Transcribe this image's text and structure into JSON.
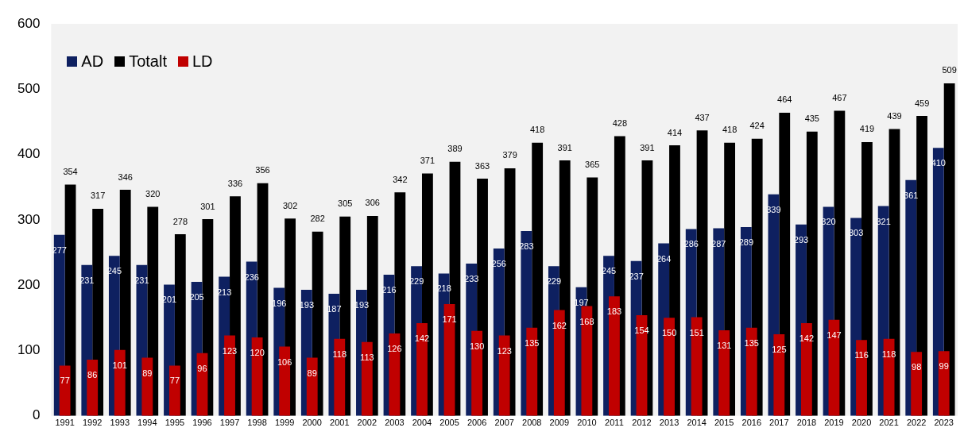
{
  "chart_data": {
    "type": "bar",
    "categories": [
      "1991",
      "1992",
      "1993",
      "1994",
      "1995",
      "1996",
      "1997",
      "1998",
      "1999",
      "2000",
      "2001",
      "2002",
      "2003",
      "2004",
      "2005",
      "2006",
      "2007",
      "2008",
      "2009",
      "2010",
      "2011",
      "2012",
      "2013",
      "2014",
      "2015",
      "2016",
      "2017",
      "2018",
      "2019",
      "2020",
      "2021",
      "2022",
      "2023"
    ],
    "series": [
      {
        "name": "AD",
        "color": "#0e2060",
        "values": [
          277,
          231,
          245,
          231,
          201,
          205,
          213,
          236,
          196,
          193,
          187,
          193,
          216,
          229,
          218,
          233,
          256,
          283,
          229,
          197,
          245,
          237,
          264,
          286,
          287,
          289,
          339,
          293,
          320,
          303,
          321,
          361,
          410
        ]
      },
      {
        "name": "Totalt",
        "color": "#000000",
        "values": [
          354,
          317,
          346,
          320,
          278,
          301,
          336,
          356,
          302,
          282,
          305,
          306,
          342,
          371,
          389,
          363,
          379,
          418,
          391,
          365,
          428,
          391,
          414,
          437,
          418,
          424,
          464,
          435,
          467,
          419,
          439,
          459,
          509
        ]
      },
      {
        "name": "LD",
        "color": "#c00000",
        "values": [
          77,
          86,
          101,
          89,
          77,
          96,
          123,
          120,
          106,
          89,
          118,
          113,
          126,
          142,
          171,
          130,
          123,
          135,
          162,
          168,
          183,
          154,
          150,
          151,
          131,
          135,
          125,
          142,
          147,
          116,
          118,
          98,
          99
        ]
      }
    ],
    "ylim": [
      0,
      600
    ],
    "yticks": [
      0,
      100,
      200,
      300,
      400,
      500,
      600
    ],
    "legend": "top left",
    "data_labels": true
  }
}
